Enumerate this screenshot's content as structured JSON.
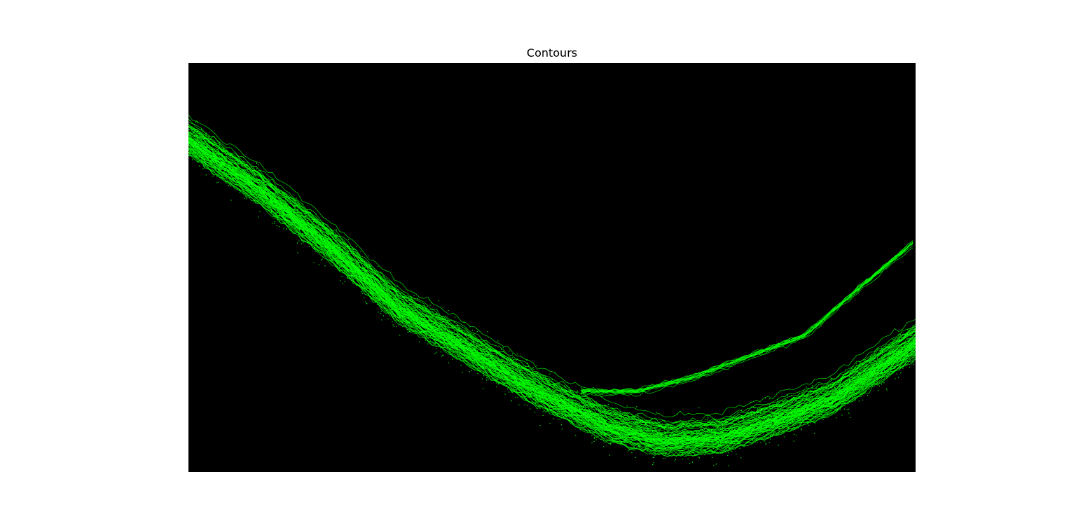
{
  "figure": {
    "title": "Contours"
  },
  "image": {
    "background_color": "#000000",
    "contour_color": "#00ff00",
    "description_type": "contour-overlay"
  }
}
